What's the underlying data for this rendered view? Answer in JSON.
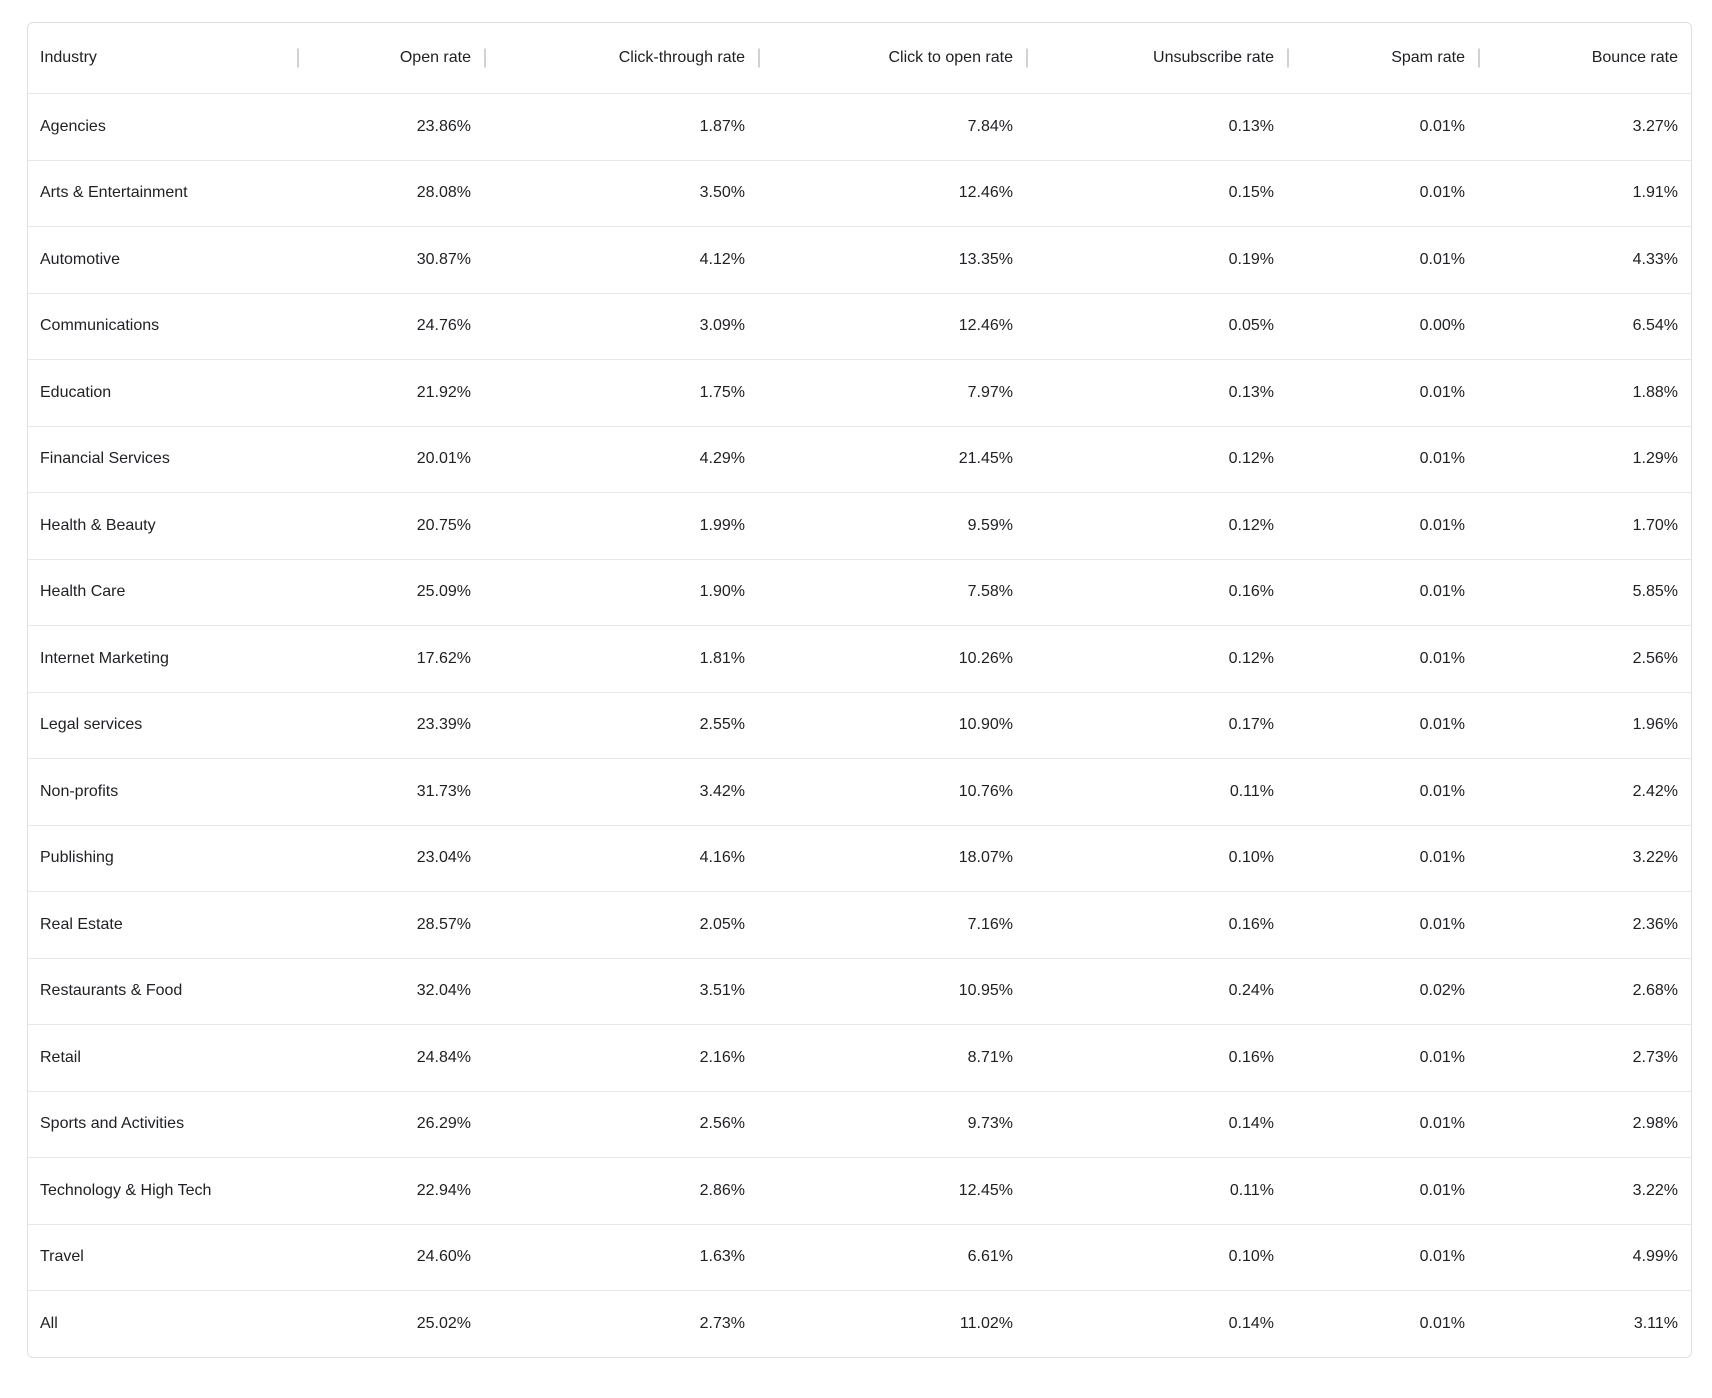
{
  "chart_data": {
    "type": "table",
    "columns": [
      "Industry",
      "Open rate",
      "Click-through rate",
      "Click to open rate",
      "Unsubscribe rate",
      "Spam rate",
      "Bounce rate"
    ],
    "rows": [
      [
        "Agencies",
        "23.86%",
        "1.87%",
        "7.84%",
        "0.13%",
        "0.01%",
        "3.27%"
      ],
      [
        "Arts & Entertainment",
        "28.08%",
        "3.50%",
        "12.46%",
        "0.15%",
        "0.01%",
        "1.91%"
      ],
      [
        "Automotive",
        "30.87%",
        "4.12%",
        "13.35%",
        "0.19%",
        "0.01%",
        "4.33%"
      ],
      [
        "Communications",
        "24.76%",
        "3.09%",
        "12.46%",
        "0.05%",
        "0.00%",
        "6.54%"
      ],
      [
        "Education",
        "21.92%",
        "1.75%",
        "7.97%",
        "0.13%",
        "0.01%",
        "1.88%"
      ],
      [
        "Financial Services",
        "20.01%",
        "4.29%",
        "21.45%",
        "0.12%",
        "0.01%",
        "1.29%"
      ],
      [
        "Health & Beauty",
        "20.75%",
        "1.99%",
        "9.59%",
        "0.12%",
        "0.01%",
        "1.70%"
      ],
      [
        "Health Care",
        "25.09%",
        "1.90%",
        "7.58%",
        "0.16%",
        "0.01%",
        "5.85%"
      ],
      [
        "Internet Marketing",
        "17.62%",
        "1.81%",
        "10.26%",
        "0.12%",
        "0.01%",
        "2.56%"
      ],
      [
        "Legal services",
        "23.39%",
        "2.55%",
        "10.90%",
        "0.17%",
        "0.01%",
        "1.96%"
      ],
      [
        "Non-profits",
        "31.73%",
        "3.42%",
        "10.76%",
        "0.11%",
        "0.01%",
        "2.42%"
      ],
      [
        "Publishing",
        "23.04%",
        "4.16%",
        "18.07%",
        "0.10%",
        "0.01%",
        "3.22%"
      ],
      [
        "Real Estate",
        "28.57%",
        "2.05%",
        "7.16%",
        "0.16%",
        "0.01%",
        "2.36%"
      ],
      [
        "Restaurants & Food",
        "32.04%",
        "3.51%",
        "10.95%",
        "0.24%",
        "0.02%",
        "2.68%"
      ],
      [
        "Retail",
        "24.84%",
        "2.16%",
        "8.71%",
        "0.16%",
        "0.01%",
        "2.73%"
      ],
      [
        "Sports and Activities",
        "26.29%",
        "2.56%",
        "9.73%",
        "0.14%",
        "0.01%",
        "2.98%"
      ],
      [
        "Technology & High Tech",
        "22.94%",
        "2.86%",
        "12.45%",
        "0.11%",
        "0.01%",
        "3.22%"
      ],
      [
        "Travel",
        "24.60%",
        "1.63%",
        "6.61%",
        "0.10%",
        "0.01%",
        "4.99%"
      ],
      [
        "All",
        "25.02%",
        "2.73%",
        "11.02%",
        "0.14%",
        "0.01%",
        "3.11%"
      ]
    ]
  },
  "colors": {
    "text": "#202124",
    "background": "#ffffff",
    "outer_border": "#e0e0e0",
    "row_border": "#e8e8e8",
    "tick": "#d2d2d2"
  }
}
